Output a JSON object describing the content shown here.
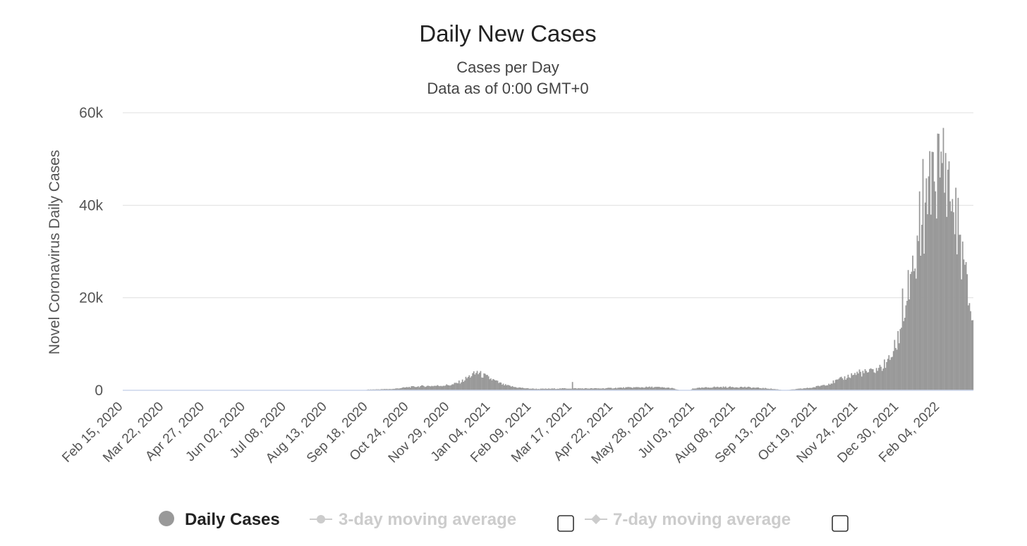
{
  "chart_data": {
    "type": "bar",
    "title": "Daily New Cases",
    "subtitle_line1": "Cases per Day",
    "subtitle_line2": "Data as of 0:00 GMT+0",
    "ylabel": "Novel Coronavirus Daily Cases",
    "xlabel": "",
    "ylim": [
      0,
      60000
    ],
    "yticks": [
      "0",
      "20k",
      "40k",
      "60k"
    ],
    "ytick_values": [
      0,
      20000,
      40000,
      60000
    ],
    "x_tick_labels": [
      "Feb 15, 2020",
      "Mar 22, 2020",
      "Apr 27, 2020",
      "Jun 02, 2020",
      "Jul 08, 2020",
      "Aug 13, 2020",
      "Sep 18, 2020",
      "Oct 24, 2020",
      "Nov 29, 2020",
      "Jan 04, 2021",
      "Feb 09, 2021",
      "Mar 17, 2021",
      "Apr 22, 2021",
      "May 28, 2021",
      "Jul 03, 2021",
      "Aug 08, 2021",
      "Sep 13, 2021",
      "Oct 19, 2021",
      "Nov 24, 2021",
      "Dec 30, 2021",
      "Feb 04, 2022"
    ],
    "x_start": "Feb 15, 2020",
    "x_end": "Mar 05, 2022",
    "grid": true,
    "legend_position": "bottom",
    "bar_color": "#999999",
    "series": [
      {
        "name": "Daily Cases",
        "date_points": [
          [
            "2020-02-15",
            0
          ],
          [
            "2020-09-16",
            0
          ],
          [
            "2020-09-17",
            150
          ],
          [
            "2020-10-10",
            300
          ],
          [
            "2020-10-24",
            700
          ],
          [
            "2020-11-05",
            900
          ],
          [
            "2020-11-20",
            1000
          ],
          [
            "2020-12-01",
            1200
          ],
          [
            "2020-12-10",
            2000
          ],
          [
            "2020-12-18",
            3300
          ],
          [
            "2020-12-24",
            3700
          ],
          [
            "2021-01-01",
            2800
          ],
          [
            "2021-01-08",
            2000
          ],
          [
            "2021-01-15",
            1200
          ],
          [
            "2021-01-25",
            700
          ],
          [
            "2021-02-05",
            400
          ],
          [
            "2021-02-15",
            300
          ],
          [
            "2021-03-10",
            400
          ],
          [
            "2021-04-10",
            400
          ],
          [
            "2021-05-05",
            600
          ],
          [
            "2021-05-28",
            700
          ],
          [
            "2021-06-12",
            500
          ],
          [
            "2021-06-20",
            0
          ],
          [
            "2021-06-29",
            0
          ],
          [
            "2021-07-01",
            400
          ],
          [
            "2021-07-20",
            700
          ],
          [
            "2021-08-15",
            700
          ],
          [
            "2021-09-05",
            400
          ],
          [
            "2021-09-14",
            200
          ],
          [
            "2021-09-20",
            0
          ],
          [
            "2021-09-28",
            200
          ],
          [
            "2021-10-15",
            600
          ],
          [
            "2021-10-30",
            1500
          ],
          [
            "2021-11-10",
            2500
          ],
          [
            "2021-11-20",
            3500
          ],
          [
            "2021-12-05",
            4000
          ],
          [
            "2021-12-15",
            5000
          ],
          [
            "2021-12-22",
            7000
          ],
          [
            "2021-12-28",
            10000
          ],
          [
            "2022-01-03",
            16000
          ],
          [
            "2022-01-08",
            21000
          ],
          [
            "2022-01-13",
            26000
          ],
          [
            "2022-01-18",
            32000
          ],
          [
            "2022-01-23",
            38000
          ],
          [
            "2022-01-28",
            43000
          ],
          [
            "2022-02-02",
            48000
          ],
          [
            "2022-02-06",
            51000
          ],
          [
            "2022-02-10",
            47000
          ],
          [
            "2022-02-15",
            40000
          ],
          [
            "2022-02-20",
            35000
          ],
          [
            "2022-02-25",
            27000
          ],
          [
            "2022-03-01",
            20000
          ],
          [
            "2022-03-05",
            15500
          ]
        ],
        "spikes": [
          [
            "2020-12-23",
            4200
          ],
          [
            "2021-03-17",
            1800
          ],
          [
            "2021-11-25",
            4500
          ],
          [
            "2021-12-20",
            6800
          ],
          [
            "2022-01-02",
            22000
          ],
          [
            "2022-01-07",
            26000
          ],
          [
            "2022-01-17",
            43000
          ],
          [
            "2022-01-20",
            50000
          ],
          [
            "2022-01-26",
            51700
          ],
          [
            "2022-01-29",
            51500
          ],
          [
            "2022-01-31",
            43000
          ],
          [
            "2022-02-04",
            46000
          ]
        ]
      },
      {
        "name": "3-day moving average",
        "enabled": false
      },
      {
        "name": "7-day moving average",
        "enabled": false
      }
    ]
  },
  "legend": {
    "items": [
      {
        "label": "Daily Cases",
        "active": true,
        "icon": "circle-icon"
      },
      {
        "label": "3-day moving average",
        "active": false,
        "icon": "line-circle-icon"
      },
      {
        "label": "7-day moving average",
        "active": false,
        "icon": "line-diamond-icon"
      }
    ]
  }
}
